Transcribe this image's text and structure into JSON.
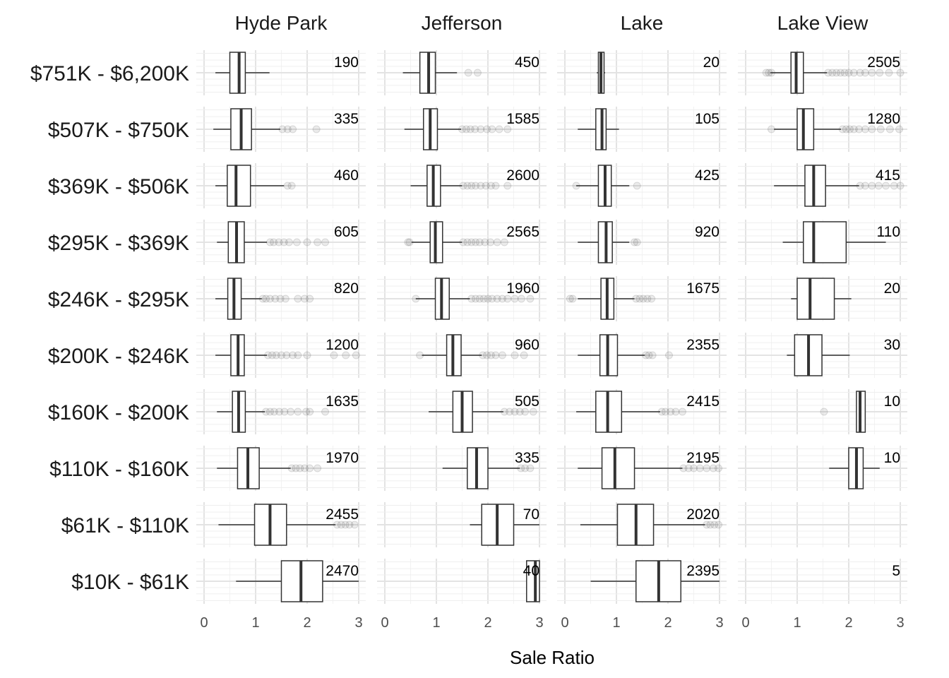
{
  "chart_data": {
    "type": "boxplot",
    "title": "",
    "xlabel": "Sale Ratio",
    "ylabel": "",
    "xlim": [
      0,
      3
    ],
    "x_ticks": [
      "0",
      "1",
      "2",
      "3"
    ],
    "grid": true,
    "facets": [
      "Hyde Park",
      "Jefferson",
      "Lake",
      "Lake View"
    ],
    "rows": [
      "$751K - $6,200K",
      "$507K - $750K",
      "$369K - $506K",
      "$295K - $369K",
      "$246K - $295K",
      "$200K - $246K",
      "$160K - $200K",
      "$110K - $160K",
      "$61K - $110K",
      "$10K - $61K"
    ],
    "panels": [
      [
        {
          "count": "190",
          "box": [
            0.22,
            0.5,
            0.68,
            0.8,
            1.27
          ],
          "outliers": []
        },
        {
          "count": "335",
          "box": [
            0.18,
            0.52,
            0.72,
            0.92,
            1.48
          ],
          "outliers": [
            1.52,
            1.62,
            1.72,
            2.18
          ]
        },
        {
          "count": "460",
          "box": [
            0.22,
            0.45,
            0.62,
            0.9,
            1.55
          ],
          "outliers": [
            1.62,
            1.7
          ]
        },
        {
          "count": "605",
          "box": [
            0.25,
            0.47,
            0.63,
            0.78,
            1.22
          ],
          "outliers": [
            1.28,
            1.35,
            1.45,
            1.55,
            1.65,
            1.8,
            2.0,
            2.2,
            2.35
          ]
        },
        {
          "count": "820",
          "box": [
            0.22,
            0.46,
            0.58,
            0.72,
            1.12
          ],
          "outliers": [
            1.14,
            1.2,
            1.28,
            1.38,
            1.48,
            1.58,
            1.82,
            1.95,
            2.05
          ]
        },
        {
          "count": "1200",
          "box": [
            0.22,
            0.52,
            0.66,
            0.78,
            1.22
          ],
          "outliers": [
            1.24,
            1.32,
            1.4,
            1.5,
            1.6,
            1.72,
            1.82,
            2.0,
            2.52,
            2.75,
            2.95
          ]
        },
        {
          "count": "1635",
          "box": [
            0.25,
            0.55,
            0.67,
            0.8,
            1.18
          ],
          "outliers": [
            1.2,
            1.28,
            1.36,
            1.46,
            1.56,
            1.68,
            1.82,
            1.98,
            2.05,
            2.35
          ]
        },
        {
          "count": "1970",
          "box": [
            0.25,
            0.65,
            0.85,
            1.07,
            1.68
          ],
          "outliers": [
            1.7,
            1.78,
            1.86,
            1.95,
            2.05,
            2.2
          ]
        },
        {
          "count": "2455",
          "box": [
            0.28,
            0.98,
            1.28,
            1.6,
            2.55
          ],
          "outliers": [
            2.58,
            2.66,
            2.74,
            2.82,
            2.92
          ]
        },
        {
          "count": "2470",
          "box": [
            0.62,
            1.5,
            1.88,
            2.3,
            3.0
          ],
          "outliers": []
        }
      ],
      [
        {
          "count": "450",
          "box": [
            0.35,
            0.68,
            0.85,
            0.98,
            1.4
          ],
          "outliers": [
            1.62,
            1.8
          ]
        },
        {
          "count": "1585",
          "box": [
            0.38,
            0.75,
            0.88,
            1.02,
            1.48
          ],
          "outliers": [
            1.5,
            1.58,
            1.66,
            1.75,
            1.86,
            1.98,
            2.08,
            2.22,
            2.38
          ]
        },
        {
          "count": "2600",
          "box": [
            0.5,
            0.82,
            0.94,
            1.08,
            1.5
          ],
          "outliers": [
            1.52,
            1.6,
            1.68,
            1.76,
            1.86,
            1.96,
            2.06,
            2.15,
            2.38
          ]
        },
        {
          "count": "2565",
          "box": [
            0.52,
            0.88,
            0.98,
            1.12,
            1.5
          ],
          "outliers": [
            0.45,
            0.48,
            1.52,
            1.6,
            1.68,
            1.76,
            1.84,
            1.94,
            2.05,
            2.18,
            2.32
          ]
        },
        {
          "count": "1960",
          "box": [
            0.6,
            0.98,
            1.1,
            1.25,
            1.65
          ],
          "outliers": [
            0.6,
            1.68,
            1.76,
            1.84,
            1.92,
            2.0,
            2.08,
            2.18,
            2.28,
            2.38,
            2.52,
            2.65,
            2.82
          ]
        },
        {
          "count": "960",
          "box": [
            0.72,
            1.2,
            1.32,
            1.48,
            1.88
          ],
          "outliers": [
            0.68,
            1.9,
            1.98,
            2.06,
            2.15,
            2.28,
            2.52,
            2.7
          ]
        },
        {
          "count": "505",
          "box": [
            0.85,
            1.32,
            1.5,
            1.7,
            2.3
          ],
          "outliers": [
            2.32,
            2.42,
            2.52,
            2.62,
            2.72,
            2.88
          ]
        },
        {
          "count": "335",
          "box": [
            1.12,
            1.6,
            1.78,
            2.0,
            2.62
          ],
          "outliers": [
            2.64,
            2.72,
            2.82
          ]
        },
        {
          "count": "70",
          "box": [
            1.65,
            1.88,
            2.18,
            2.5,
            3.0
          ],
          "outliers": []
        },
        {
          "count": "40",
          "box": [
            2.75,
            2.75,
            2.92,
            3.0,
            3.0
          ],
          "outliers": []
        }
      ],
      [
        {
          "count": "20",
          "box": [
            0.62,
            0.65,
            0.7,
            0.76,
            0.78
          ],
          "outliers": []
        },
        {
          "count": "105",
          "box": [
            0.25,
            0.6,
            0.72,
            0.8,
            1.05
          ],
          "outliers": []
        },
        {
          "count": "425",
          "box": [
            0.22,
            0.65,
            0.78,
            0.9,
            1.25
          ],
          "outliers": [
            0.22,
            1.4
          ]
        },
        {
          "count": "920",
          "box": [
            0.25,
            0.65,
            0.8,
            0.92,
            1.25
          ],
          "outliers": [
            1.35,
            1.4
          ]
        },
        {
          "count": "1675",
          "box": [
            0.25,
            0.7,
            0.82,
            0.95,
            1.35
          ],
          "outliers": [
            0.1,
            0.15,
            1.38,
            1.45,
            1.52,
            1.6,
            1.68
          ]
        },
        {
          "count": "2355",
          "box": [
            0.25,
            0.68,
            0.83,
            1.02,
            1.55
          ],
          "outliers": [
            1.57,
            1.63,
            1.7,
            2.02
          ]
        },
        {
          "count": "2415",
          "box": [
            0.22,
            0.6,
            0.83,
            1.1,
            1.85
          ],
          "outliers": [
            1.88,
            1.95,
            2.05,
            2.15,
            2.28
          ]
        },
        {
          "count": "2195",
          "box": [
            0.25,
            0.72,
            0.97,
            1.35,
            2.28
          ],
          "outliers": [
            2.3,
            2.4,
            2.5,
            2.62,
            2.75,
            2.88,
            2.98
          ]
        },
        {
          "count": "2020",
          "box": [
            0.3,
            1.02,
            1.38,
            1.72,
            2.72
          ],
          "outliers": [
            2.75,
            2.82,
            2.9,
            2.98
          ]
        },
        {
          "count": "2395",
          "box": [
            0.5,
            1.38,
            1.82,
            2.25,
            3.0
          ],
          "outliers": []
        }
      ],
      [
        {
          "count": "2505",
          "box": [
            0.48,
            0.88,
            0.98,
            1.12,
            1.58
          ],
          "outliers": [
            0.4,
            0.45,
            0.5,
            1.6,
            1.68,
            1.76,
            1.84,
            1.92,
            2.0,
            2.1,
            2.22,
            2.32,
            2.45,
            2.6,
            2.78,
            3.0
          ]
        },
        {
          "count": "1280",
          "box": [
            0.55,
            1.0,
            1.12,
            1.32,
            1.85
          ],
          "outliers": [
            0.5,
            1.88,
            1.95,
            2.02,
            2.1,
            2.2,
            2.32,
            2.45,
            2.62,
            2.8,
            2.98
          ]
        },
        {
          "count": "415",
          "box": [
            0.55,
            1.15,
            1.32,
            1.55,
            2.2
          ],
          "outliers": [
            2.22,
            2.32,
            2.45,
            2.58,
            2.72,
            2.88,
            3.0
          ]
        },
        {
          "count": "110",
          "box": [
            0.72,
            1.12,
            1.32,
            1.95,
            2.72
          ],
          "outliers": []
        },
        {
          "count": "20",
          "box": [
            0.88,
            1.0,
            1.25,
            1.72,
            2.05
          ],
          "outliers": []
        },
        {
          "count": "30",
          "box": [
            0.8,
            0.95,
            1.22,
            1.48,
            2.02
          ],
          "outliers": []
        },
        {
          "count": "10",
          "box": [
            2.15,
            2.15,
            2.22,
            2.32,
            2.32
          ],
          "outliers": [
            1.52
          ]
        },
        {
          "count": "10",
          "box": [
            1.62,
            2.0,
            2.15,
            2.28,
            2.6
          ],
          "outliers": []
        },
        {
          "count": "",
          "box": null,
          "outliers": []
        },
        {
          "count": "5",
          "box": null,
          "outliers": []
        }
      ]
    ]
  }
}
